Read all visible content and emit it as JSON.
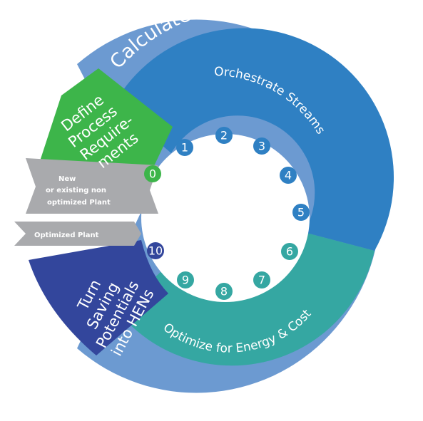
{
  "outer_title": "Calculate Energy and Cost Saving Opportunities",
  "arc_top_label": "Orchestrate Streams",
  "arc_bottom_label": "Optimize for Energy & Cost",
  "segment_define": [
    "Define",
    "Process",
    "Require-",
    "ments"
  ],
  "segment_turn": [
    "Turn",
    "Saving",
    "Potentials",
    "into HENs"
  ],
  "arrow_new": [
    "New",
    "or existing non",
    "optimized Plant"
  ],
  "arrow_optimized": "Optimized Plant",
  "steps": [
    "0",
    "1",
    "2",
    "3",
    "4",
    "5",
    "6",
    "7",
    "8",
    "9",
    "10"
  ],
  "colors": {
    "outer_ring": "#6c9ad1",
    "orchestrate": "#2f80c3",
    "optimize": "#35a7a2",
    "define": "#3db54a",
    "turn": "#33469c",
    "arrow": "#a9aaad"
  }
}
